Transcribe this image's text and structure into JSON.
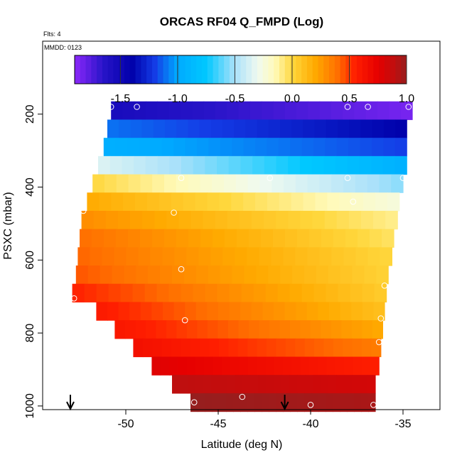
{
  "title": "ORCAS RF04 Q_FMPD (Log)",
  "flights_note": "Flts: 4",
  "date_note": "MMDD: 0123",
  "chart_data": {
    "type": "heatmap",
    "xlabel": "Latitude (deg N)",
    "ylabel": "PSXC (mbar)",
    "xlim": [
      -54.5,
      -33.0
    ],
    "ylim": [
      1010,
      0
    ],
    "x_ticks": [
      -50,
      -45,
      -40,
      -35
    ],
    "x_tick_labels": [
      "-50",
      "-45",
      "-40",
      "-35"
    ],
    "y_ticks": [
      200,
      400,
      600,
      800,
      1000
    ],
    "y_tick_labels": [
      "200",
      "400",
      "600",
      "800",
      "1000"
    ],
    "colorbar": {
      "range": [
        -1.9,
        1.0
      ],
      "ticks": [
        -1.5,
        -1.0,
        -0.5,
        0.0,
        0.5,
        1.0
      ],
      "tick_labels": [
        "-1.5",
        "-1.0",
        "-0.5",
        "0.0",
        "0.5",
        "1.0"
      ]
    },
    "bands": [
      {
        "p": 150,
        "lat0": -50.8,
        "lat1": -34.5,
        "v0": -1.55,
        "v1": -1.85
      },
      {
        "p": 200,
        "lat0": -51.0,
        "lat1": -34.8,
        "v0": -1.1,
        "v1": -1.4
      },
      {
        "p": 250,
        "lat0": -51.2,
        "lat1": -34.8,
        "v0": -0.95,
        "v1": -1.2
      },
      {
        "p": 300,
        "lat0": -51.5,
        "lat1": -34.8,
        "v0": -0.35,
        "v1": -0.95
      },
      {
        "p": 350,
        "lat0": -51.8,
        "lat1": -35.0,
        "v0": 0.0,
        "v1": -0.55
      },
      {
        "p": 400,
        "lat0": -52.1,
        "lat1": -35.2,
        "v0": 0.2,
        "v1": -0.25
      },
      {
        "p": 450,
        "lat0": -52.4,
        "lat1": -35.3,
        "v0": 0.3,
        "v1": -0.1
      },
      {
        "p": 500,
        "lat0": -52.5,
        "lat1": -35.5,
        "v0": 0.4,
        "v1": -0.05
      },
      {
        "p": 550,
        "lat0": -52.6,
        "lat1": -35.6,
        "v0": 0.42,
        "v1": 0.0
      },
      {
        "p": 600,
        "lat0": -52.7,
        "lat1": -35.8,
        "v0": 0.45,
        "v1": 0.02
      },
      {
        "p": 650,
        "lat0": -52.9,
        "lat1": -35.9,
        "v0": 0.55,
        "v1": 0.05
      },
      {
        "p": 700,
        "lat0": -51.6,
        "lat1": -36.0,
        "v0": 0.58,
        "v1": 0.1
      },
      {
        "p": 750,
        "lat0": -50.6,
        "lat1": -36.1,
        "v0": 0.6,
        "v1": 0.2
      },
      {
        "p": 800,
        "lat0": -49.6,
        "lat1": -36.2,
        "v0": 0.65,
        "v1": 0.35
      },
      {
        "p": 850,
        "lat0": -48.6,
        "lat1": -36.3,
        "v0": 0.78,
        "v1": 0.55
      },
      {
        "p": 900,
        "lat0": -47.5,
        "lat1": -36.5,
        "v0": 0.9,
        "v1": 0.82
      },
      {
        "p": 950,
        "lat0": -46.5,
        "lat1": -36.5,
        "v0": 1.0,
        "v1": 0.95
      }
    ],
    "circles": [
      {
        "lat": -50.8,
        "p": 180
      },
      {
        "lat": -49.4,
        "p": 180
      },
      {
        "lat": -38.0,
        "p": 180
      },
      {
        "lat": -36.9,
        "p": 180
      },
      {
        "lat": -34.7,
        "p": 180
      },
      {
        "lat": -47.0,
        "p": 375
      },
      {
        "lat": -42.2,
        "p": 375
      },
      {
        "lat": -38.0,
        "p": 375
      },
      {
        "lat": -35.0,
        "p": 375
      },
      {
        "lat": -37.7,
        "p": 440
      },
      {
        "lat": -52.3,
        "p": 465
      },
      {
        "lat": -47.4,
        "p": 470
      },
      {
        "lat": -47.0,
        "p": 625
      },
      {
        "lat": -36.0,
        "p": 670
      },
      {
        "lat": -52.8,
        "p": 705
      },
      {
        "lat": -46.8,
        "p": 765
      },
      {
        "lat": -36.2,
        "p": 760
      },
      {
        "lat": -36.3,
        "p": 825
      },
      {
        "lat": -43.7,
        "p": 975
      },
      {
        "lat": -46.3,
        "p": 990
      },
      {
        "lat": -40.0,
        "p": 997
      },
      {
        "lat": -36.6,
        "p": 997
      }
    ],
    "arrows": [
      -53.0,
      -41.4
    ]
  }
}
